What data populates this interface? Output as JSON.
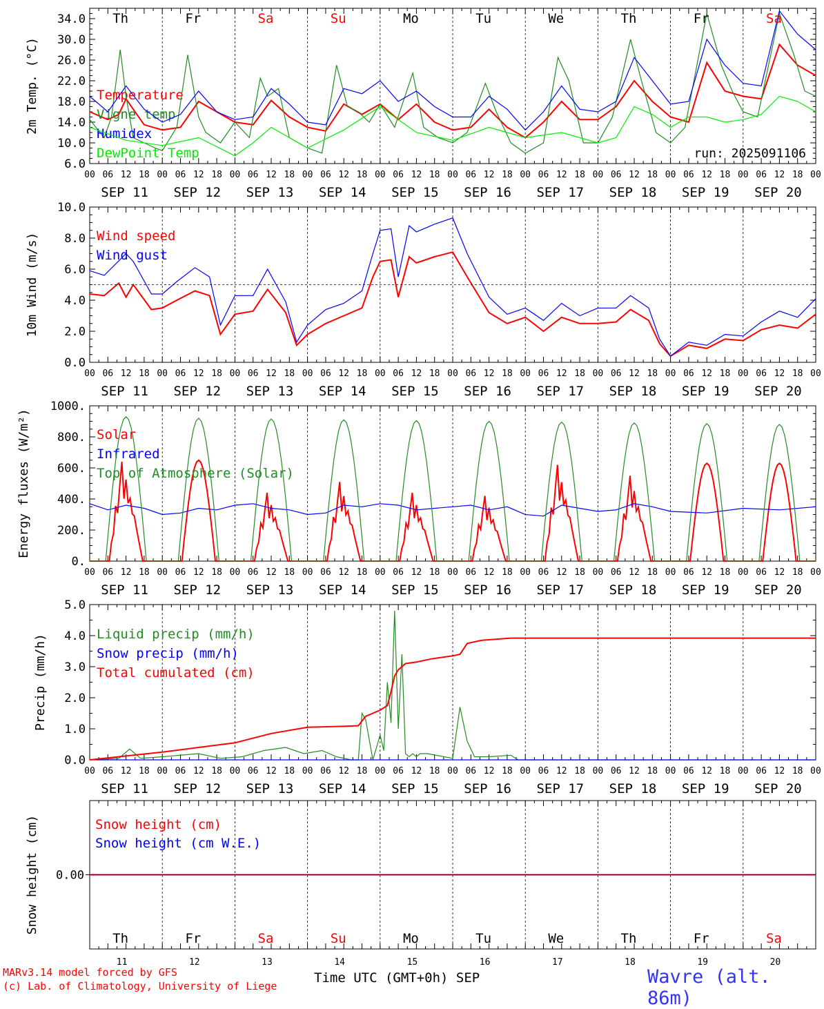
{
  "run_label": "run: 2025091106",
  "hour_ticks": [
    "00",
    "06",
    "12",
    "18"
  ],
  "hour_end_label": "00",
  "date_labels": [
    "SEP 11",
    "SEP 12",
    "SEP 13",
    "SEP 14",
    "SEP 15",
    "SEP 16",
    "SEP 17",
    "SEP 18",
    "SEP 19",
    "SEP 20"
  ],
  "days": [
    {
      "name": "Th",
      "weekend": false
    },
    {
      "name": "Fr",
      "weekend": false
    },
    {
      "name": "Sa",
      "weekend": true
    },
    {
      "name": "Su",
      "weekend": true
    },
    {
      "name": "Mo",
      "weekend": false
    },
    {
      "name": "Tu",
      "weekend": false
    },
    {
      "name": "We",
      "weekend": false
    },
    {
      "name": "Th",
      "weekend": false
    },
    {
      "name": "Fr",
      "weekend": false
    },
    {
      "name": "Sa",
      "weekend": true
    }
  ],
  "bottom_day_numbers": [
    "11",
    "12",
    "13",
    "14",
    "15",
    "16",
    "17",
    "18",
    "19",
    "20"
  ],
  "colors": {
    "red": "#ff0000",
    "green": "#228b22",
    "blue": "#0000ff",
    "lightgreen": "#00ee00",
    "station": "#3333ff"
  },
  "footer": {
    "credit_line1": "MARv3.14 model forced by GFS",
    "credit_line2": "(c) Lab. of Climatology, University of Liege",
    "xlabel": "Time UTC (GMT+0h) SEP",
    "station": "Wavre (alt. 86m)"
  },
  "chart_data": [
    {
      "type": "line",
      "ylabel": "2m Temp. (°C)",
      "ylim": [
        6.0,
        36.0
      ],
      "yticks": [
        "6.0",
        "10.0",
        "14.0",
        "18.0",
        "22.0",
        "26.0",
        "30.0",
        "34.0"
      ],
      "x_unit": "days since SEP 11 00 UTC",
      "series": [
        {
          "name": "Temperature",
          "color": "red",
          "x": [
            0,
            0.25,
            0.4,
            0.5,
            0.6,
            0.75,
            1,
            1.25,
            1.5,
            1.75,
            2,
            2.25,
            2.5,
            2.75,
            3,
            3.25,
            3.5,
            3.75,
            4,
            4.25,
            4.5,
            4.75,
            5,
            5.25,
            5.5,
            5.75,
            6,
            6.25,
            6.5,
            6.75,
            7,
            7.25,
            7.5,
            7.75,
            8,
            8.25,
            8.5,
            8.75,
            9,
            9.25,
            9.5,
            9.75,
            10
          ],
          "y": [
            16,
            14.5,
            15.5,
            18.5,
            16.5,
            13.5,
            12.5,
            13,
            18,
            16,
            14,
            13.5,
            18.2,
            15,
            13,
            12.3,
            17.5,
            15.5,
            17.5,
            14.5,
            17.5,
            14,
            12.5,
            13,
            16.5,
            13,
            11,
            14,
            18,
            14.5,
            14.5,
            17,
            22,
            18,
            15,
            14,
            25.5,
            20,
            19,
            18.5,
            29,
            25,
            23
          ]
        },
        {
          "name": "Vigne temp",
          "color": "green",
          "x": [
            0,
            0.2,
            0.3,
            0.42,
            0.5,
            0.6,
            0.75,
            0.9,
            1,
            1.2,
            1.35,
            1.5,
            1.6,
            1.8,
            2,
            2.2,
            2.35,
            2.45,
            2.6,
            2.75,
            3,
            3.2,
            3.4,
            3.55,
            3.7,
            3.85,
            4,
            4.2,
            4.45,
            4.6,
            4.8,
            5,
            5.2,
            5.45,
            5.6,
            5.8,
            6,
            6.25,
            6.45,
            6.6,
            6.8,
            7,
            7.2,
            7.45,
            7.6,
            7.8,
            8,
            8.2,
            8.5,
            8.7,
            8.85,
            9,
            9.2,
            9.5,
            9.7,
            9.85,
            10
          ],
          "y": [
            14.5,
            11,
            15,
            28,
            19,
            11,
            10,
            9,
            8.5,
            13,
            27,
            15,
            12,
            10,
            14,
            11,
            22.5,
            19,
            20.5,
            11,
            9,
            8,
            25,
            17,
            16,
            14,
            17.5,
            13,
            23.5,
            13,
            11,
            10,
            12,
            21.5,
            16,
            10,
            8,
            10,
            26.5,
            22,
            10,
            10,
            15,
            30,
            22,
            12,
            10,
            13,
            35,
            25,
            20,
            16,
            15,
            35,
            27,
            20,
            19
          ]
        },
        {
          "name": "Humidex",
          "color": "blue",
          "x": [
            0,
            0.25,
            0.5,
            0.75,
            1,
            1.25,
            1.5,
            1.75,
            2,
            2.25,
            2.5,
            2.75,
            3,
            3.25,
            3.5,
            3.75,
            4,
            4.25,
            4.5,
            4.75,
            5,
            5.25,
            5.5,
            5.75,
            6,
            6.25,
            6.5,
            6.75,
            7,
            7.25,
            7.5,
            7.75,
            8,
            8.25,
            8.5,
            8.75,
            9,
            9.25,
            9.5,
            9.75,
            10
          ],
          "y": [
            19,
            16,
            21,
            16.5,
            14,
            15.5,
            20,
            16,
            14.5,
            15,
            20.5,
            17.5,
            14,
            13.5,
            20.5,
            19.5,
            22,
            18,
            20,
            17,
            15,
            15,
            19,
            16.5,
            12.5,
            16,
            21,
            16.5,
            16,
            18,
            26.5,
            22,
            17.5,
            18,
            30,
            25,
            21.5,
            21,
            35.5,
            31,
            28
          ]
        },
        {
          "name": "DewPoint Temp",
          "color": "lightgreen",
          "x": [
            0,
            0.5,
            1,
            1.5,
            2,
            2.25,
            2.5,
            2.75,
            3,
            3.5,
            4,
            4.5,
            5,
            5.5,
            6,
            6.5,
            7,
            7.25,
            7.5,
            7.75,
            8,
            8.25,
            8.5,
            8.75,
            9,
            9.25,
            9.5,
            9.75,
            10
          ],
          "y": [
            13,
            10.5,
            9.5,
            11,
            7.5,
            10,
            13,
            11,
            9,
            12.5,
            17,
            12,
            10.5,
            13,
            11,
            12,
            10,
            11,
            17,
            15.5,
            13,
            15,
            15,
            14,
            14.5,
            15.5,
            19,
            18,
            16
          ]
        }
      ]
    },
    {
      "type": "line",
      "ylabel": "10m Wind (m/s)",
      "ylim": [
        0.0,
        10.0
      ],
      "yticks": [
        "0.0",
        "2.0",
        "4.0",
        "6.0",
        "8.0",
        "10.0"
      ],
      "reference_line": 5.0,
      "x_unit": "days since SEP 11 00 UTC",
      "series": [
        {
          "name": "Wind speed",
          "color": "red",
          "x": [
            0,
            0.2,
            0.4,
            0.5,
            0.6,
            0.85,
            1,
            1.2,
            1.45,
            1.65,
            1.8,
            2,
            2.25,
            2.45,
            2.7,
            2.85,
            3,
            3.25,
            3.5,
            3.75,
            3.9,
            4,
            4.15,
            4.25,
            4.4,
            4.5,
            4.75,
            5,
            5.2,
            5.5,
            5.75,
            6,
            6.25,
            6.5,
            6.75,
            7,
            7.25,
            7.45,
            7.7,
            7.85,
            8,
            8.25,
            8.5,
            8.75,
            9,
            9.25,
            9.5,
            9.75,
            10
          ],
          "y": [
            4.4,
            4.3,
            5.1,
            4.2,
            5,
            3.4,
            3.5,
            4,
            4.6,
            4.3,
            1.8,
            3.1,
            3.3,
            4.7,
            3.2,
            1.1,
            1.8,
            2.5,
            3,
            3.5,
            5.5,
            6.5,
            6.6,
            4.2,
            6.8,
            6.4,
            6.8,
            7.1,
            5.5,
            3.2,
            2.5,
            2.9,
            2,
            2.9,
            2.5,
            2.5,
            2.6,
            3.4,
            2.7,
            1.2,
            0.4,
            1.1,
            0.9,
            1.5,
            1.4,
            2.1,
            2.4,
            2.2,
            3.1
          ]
        },
        {
          "name": "Wind gust",
          "color": "blue",
          "x": [
            0,
            0.2,
            0.5,
            0.6,
            0.85,
            1,
            1.2,
            1.45,
            1.65,
            1.8,
            2,
            2.25,
            2.45,
            2.7,
            2.85,
            3,
            3.25,
            3.5,
            3.75,
            3.9,
            4,
            4.15,
            4.25,
            4.4,
            4.5,
            4.75,
            5,
            5.2,
            5.5,
            5.75,
            6,
            6.25,
            6.5,
            6.75,
            7,
            7.25,
            7.45,
            7.7,
            7.85,
            8,
            8.25,
            8.5,
            8.75,
            9,
            9.25,
            9.5,
            9.75,
            10
          ],
          "y": [
            5.9,
            5.6,
            7,
            6.5,
            4.4,
            4.4,
            5.2,
            6.1,
            5.5,
            2.4,
            4.3,
            4.3,
            6,
            3.9,
            1.3,
            2.4,
            3.4,
            3.8,
            4.6,
            7,
            8.5,
            8.6,
            5.5,
            8.8,
            8.4,
            8.9,
            9.3,
            7,
            4.2,
            3.1,
            3.5,
            2.7,
            3.8,
            3,
            3.5,
            3.5,
            4.3,
            3.5,
            1.5,
            0.4,
            1.3,
            1.1,
            1.8,
            1.7,
            2.6,
            3.3,
            2.9,
            4.1
          ]
        }
      ]
    },
    {
      "type": "line",
      "ylabel": "Energy fluxes (W/m²)",
      "ylim": [
        0,
        1000
      ],
      "yticks": [
        "0.",
        "200.",
        "400.",
        "600.",
        "800.",
        "1000."
      ],
      "x_unit": "days since SEP 11 00 UTC",
      "series": [
        {
          "name": "Solar",
          "color": "red",
          "peaks": [
            {
              "day": 0,
              "peak": 640,
              "broken": true
            },
            {
              "day": 1,
              "peak": 650,
              "broken": false
            },
            {
              "day": 2,
              "peak": 440,
              "broken": true
            },
            {
              "day": 3,
              "peak": 510,
              "broken": true
            },
            {
              "day": 4,
              "peak": 440,
              "broken": true
            },
            {
              "day": 5,
              "peak": 420,
              "broken": true
            },
            {
              "day": 6,
              "peak": 620,
              "broken": true
            },
            {
              "day": 7,
              "peak": 550,
              "broken": true
            },
            {
              "day": 8,
              "peak": 630,
              "broken": false
            },
            {
              "day": 9,
              "peak": 630,
              "broken": false
            }
          ]
        },
        {
          "name": "Infrared",
          "color": "blue",
          "x": [
            0,
            0.25,
            0.5,
            0.75,
            1,
            1.25,
            1.5,
            1.75,
            2,
            2.25,
            2.5,
            2.75,
            3,
            3.25,
            3.5,
            3.75,
            4,
            4.25,
            4.5,
            4.75,
            5,
            5.25,
            5.5,
            5.75,
            6,
            6.25,
            6.5,
            6.75,
            7,
            7.25,
            7.5,
            7.75,
            8,
            8.5,
            9,
            9.5,
            10
          ],
          "y": [
            370,
            330,
            360,
            340,
            300,
            310,
            340,
            330,
            360,
            370,
            340,
            330,
            300,
            310,
            360,
            350,
            370,
            360,
            330,
            340,
            350,
            360,
            330,
            350,
            300,
            290,
            360,
            340,
            320,
            330,
            370,
            350,
            320,
            310,
            340,
            330,
            350
          ]
        },
        {
          "name": "Top of Atmosphere (Solar)",
          "color": "green",
          "peaks": [
            930,
            920,
            915,
            910,
            905,
            900,
            895,
            890,
            885,
            880
          ]
        }
      ]
    },
    {
      "type": "line",
      "ylabel": "Precip (mm/h)",
      "ylim": [
        0.0,
        5.0
      ],
      "yticks": [
        "0.0",
        "1.0",
        "2.0",
        "3.0",
        "4.0",
        "5.0"
      ],
      "x_unit": "days since SEP 11 00 UTC",
      "series": [
        {
          "name": "Liquid precip (mm/h)",
          "color": "green",
          "x": [
            0,
            0.4,
            0.55,
            0.7,
            1,
            1.5,
            1.8,
            2.1,
            2.4,
            2.7,
            2.95,
            3.2,
            3.4,
            3.6,
            3.7,
            3.75,
            3.8,
            3.9,
            4,
            4.05,
            4.1,
            4.15,
            4.2,
            4.25,
            4.3,
            4.35,
            4.4,
            4.45,
            4.5,
            4.55,
            4.65,
            5,
            5.1,
            5.2,
            5.3,
            5.4,
            5.5,
            5.8,
            5.9,
            6,
            10
          ],
          "y": [
            0,
            0.05,
            0.35,
            0.05,
            0.1,
            0.2,
            0.05,
            0.1,
            0.3,
            0.4,
            0.2,
            0.3,
            0.1,
            0,
            0,
            1.5,
            1.3,
            0,
            0.8,
            0.3,
            2.5,
            1.2,
            4.8,
            1,
            3.4,
            0.2,
            0.1,
            0.2,
            0.1,
            0.2,
            0.2,
            0.05,
            1.7,
            0.6,
            0.1,
            0.1,
            0.1,
            0.15,
            0,
            0,
            0
          ]
        },
        {
          "name": "Snow precip (mm/h)",
          "color": "blue",
          "x": [
            0,
            10
          ],
          "y": [
            0,
            0
          ]
        },
        {
          "name": "Total cumulated (cm)",
          "color": "red",
          "x": [
            0,
            0.4,
            1,
            1.5,
            2,
            2.5,
            3,
            3.5,
            3.7,
            3.8,
            4,
            4.1,
            4.15,
            4.2,
            4.25,
            4.3,
            4.35,
            4.5,
            4.7,
            5,
            5.1,
            5.2,
            5.4,
            5.8,
            6,
            10
          ],
          "y": [
            0,
            0.1,
            0.25,
            0.4,
            0.55,
            0.85,
            1.05,
            1.08,
            1.1,
            1.4,
            1.6,
            1.75,
            2.2,
            2.7,
            2.9,
            3,
            3.1,
            3.15,
            3.25,
            3.35,
            3.4,
            3.75,
            3.85,
            3.92,
            3.92,
            3.92
          ]
        }
      ]
    },
    {
      "type": "line",
      "ylabel": "Snow height (cm)",
      "yticks": [
        "0.00"
      ],
      "x_unit": "days since SEP 11 00 UTC",
      "series": [
        {
          "name": "Snow height (cm)",
          "color": "red",
          "x": [
            0,
            10
          ],
          "y": [
            0,
            0
          ]
        },
        {
          "name": "Snow height (cm W.E.)",
          "color": "blue",
          "x": [
            0,
            10
          ],
          "y": [
            0,
            0
          ]
        }
      ]
    }
  ]
}
